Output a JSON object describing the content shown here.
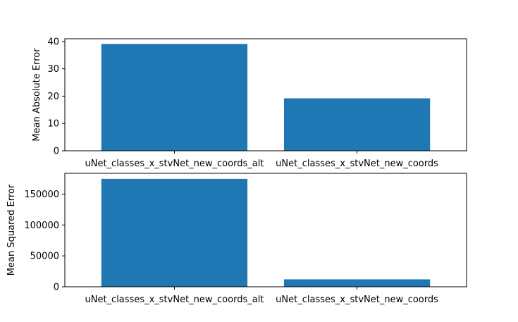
{
  "chart_data": [
    {
      "type": "bar",
      "categories": [
        "uNet_classes_x_stvNet_new_coords_alt",
        "uNet_classes_x_stvNet_new_coords"
      ],
      "values": [
        39.1,
        19.2
      ],
      "ylabel": "Mean Absolute Error",
      "ylim": [
        0,
        41
      ],
      "yticks": [
        0,
        10,
        20,
        30,
        40
      ],
      "bar_color": "#1f77b4",
      "grid": false
    },
    {
      "type": "bar",
      "categories": [
        "uNet_classes_x_stvNet_new_coords_alt",
        "uNet_classes_x_stvNet_new_coords"
      ],
      "values": [
        174500,
        12000
      ],
      "ylabel": "Mean Squared Error",
      "ylim": [
        0,
        183500
      ],
      "yticks": [
        0,
        50000,
        100000,
        150000
      ],
      "bar_color": "#1f77b4",
      "grid": false
    }
  ]
}
